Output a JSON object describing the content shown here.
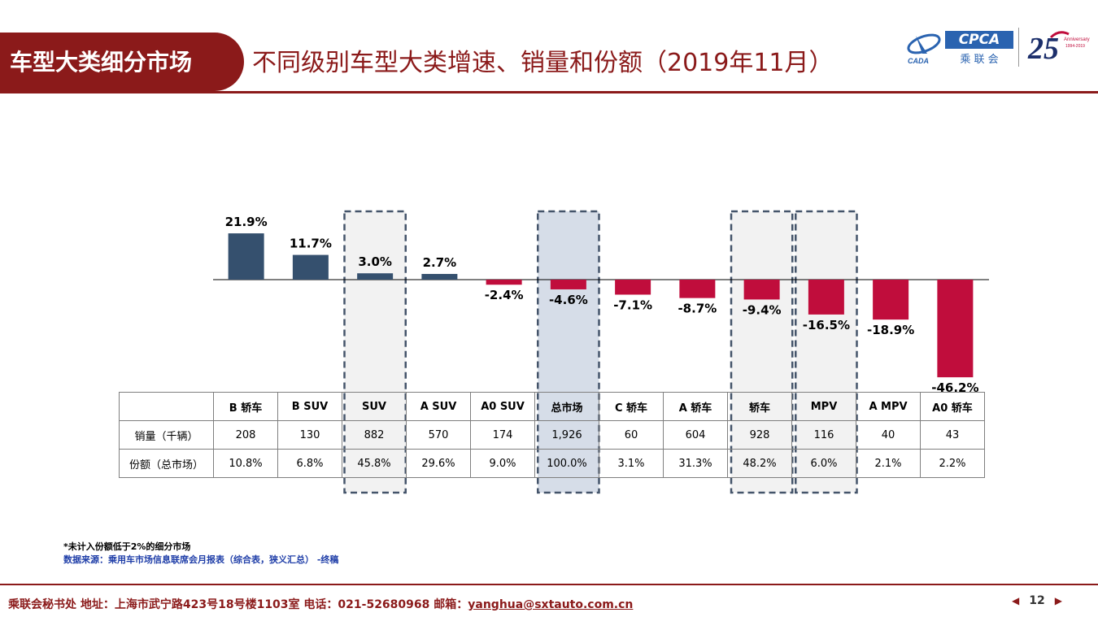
{
  "header": {
    "section": "车型大类细分市场",
    "title": "不同级别车型大类增速、销量和份额（2019年11月）"
  },
  "logos": {
    "cpca": "CPCA",
    "cpca_sub": "乘 联 会",
    "cada": "CADA",
    "anniv": "Anniversary",
    "anniv_years": "1994-2019"
  },
  "colors": {
    "brand": "#8b1a1a",
    "positive_bar": "#35506e",
    "negative_bar": "#c00d3c",
    "highlight_fill": "#f2f2f2",
    "total_fill": "#d6dde8",
    "highlight_border": "#44546a"
  },
  "chart_data": {
    "type": "bar",
    "categories": [
      "B 轿车",
      "B SUV",
      "SUV",
      "A SUV",
      "A0 SUV",
      "总市场",
      "C 轿车",
      "A 轿车",
      "轿车",
      "MPV",
      "A MPV",
      "A0 轿车"
    ],
    "values": [
      21.9,
      11.7,
      3.0,
      2.7,
      -2.4,
      -4.6,
      -7.1,
      -8.7,
      -9.4,
      -16.5,
      -18.9,
      -46.2
    ],
    "value_labels": [
      "21.9%",
      "11.7%",
      "3.0%",
      "2.7%",
      "-2.4%",
      "-4.6%",
      "-7.1%",
      "-8.7%",
      "-9.4%",
      "-16.5%",
      "-18.9%",
      "-46.2%"
    ],
    "highlighted": [
      "SUV",
      "总市场",
      "轿车",
      "MPV"
    ],
    "total_category": "总市场",
    "unit": "%",
    "ylim": [
      -46.2,
      21.9
    ],
    "title": "",
    "xlabel": "",
    "ylabel": ""
  },
  "table": {
    "headers": [
      "B 轿车",
      "B SUV",
      "SUV",
      "A SUV",
      "A0 SUV",
      "总市场",
      "C 轿车",
      "A 轿车",
      "轿车",
      "MPV",
      "A MPV",
      "A0 轿车"
    ],
    "rows": [
      {
        "label": "销量（千辆）",
        "values": [
          "208",
          "130",
          "882",
          "570",
          "174",
          "1,926",
          "60",
          "604",
          "928",
          "116",
          "40",
          "43"
        ]
      },
      {
        "label": "份额（总市场）",
        "values": [
          "10.8%",
          "6.8%",
          "45.8%",
          "29.6%",
          "9.0%",
          "100.0%",
          "3.1%",
          "31.3%",
          "48.2%",
          "6.0%",
          "2.1%",
          "2.2%"
        ]
      }
    ]
  },
  "notes": {
    "footnote": "*未计入份额低于2%的细分市场",
    "source": "数据来源：乘用车市场信息联席会月报表（综合表，狭义汇总） -终稿"
  },
  "footer": {
    "text": "乘联会秘书处   地址：上海市武宁路423号18号楼1103室   电话：021-52680968   邮箱：",
    "email": "yanghua@sxtauto.com.cn",
    "page": "12",
    "prev_icon": "triangle-left-icon",
    "next_icon": "triangle-right-icon"
  }
}
